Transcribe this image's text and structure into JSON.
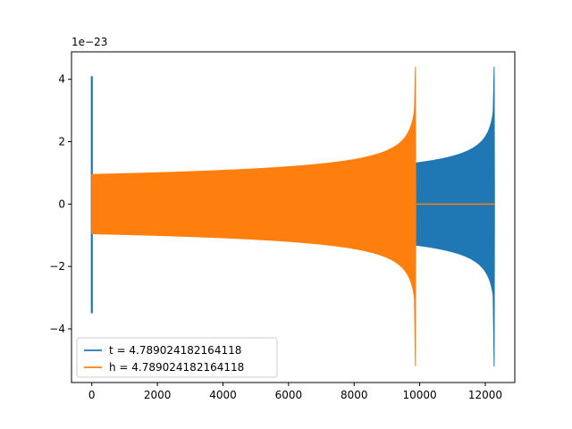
{
  "chart_data": {
    "type": "line",
    "title": "",
    "xlabel": "",
    "ylabel": "",
    "offset_text": "1e−23",
    "xlim": [
      -620,
      12900
    ],
    "ylim": [
      -5.72,
      4.88
    ],
    "x_ticks": [
      0,
      2000,
      4000,
      6000,
      8000,
      10000,
      12000
    ],
    "x_tick_labels": [
      "0",
      "2000",
      "4000",
      "6000",
      "8000",
      "10000",
      "12000"
    ],
    "y_ticks": [
      -4,
      -2,
      0,
      2,
      4
    ],
    "y_tick_labels": [
      "−4",
      "−2",
      "0",
      "2",
      "4"
    ],
    "grid": false,
    "legend_position": "lower-left",
    "series": [
      {
        "name": "t = 4.789024182164118",
        "color": "#1f77b4",
        "initial_spike": {
          "x": 0,
          "max": 4.1,
          "min": -3.5
        },
        "chirp_start_x": 0,
        "chirp_end_x": 12280,
        "amplitude_start": 0.88,
        "amplitude_at_9850": 1.35,
        "peak_max": 4.4,
        "peak_min": -5.2
      },
      {
        "name": "h = 4.789024182164118",
        "color": "#ff7f0e",
        "initial_spike": {
          "x": 0,
          "max": 0.95,
          "min": -0.95
        },
        "chirp_start_x": 0,
        "chirp_end_x": 9880,
        "amplitude_start": 0.95,
        "peak_max": 4.4,
        "peak_min": -5.2,
        "flat_after_x": 9880,
        "flat_until_x": 12280,
        "flat_value": 0
      }
    ]
  }
}
